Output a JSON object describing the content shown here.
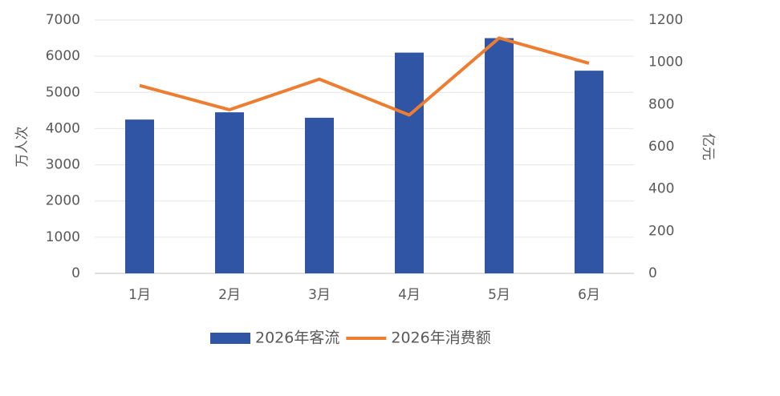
{
  "chart_data": {
    "type": "bar_line",
    "categories": [
      "1月",
      "2月",
      "3月",
      "4月",
      "5月",
      "6月"
    ],
    "series": [
      {
        "name": "2026年客流",
        "type": "bar",
        "color": "#2f55a4",
        "values": [
          4250,
          4450,
          4300,
          6100,
          6500,
          5600
        ]
      },
      {
        "name": "2026年消费额",
        "type": "line",
        "color": "#ed7d31",
        "axis": "y2",
        "values": [
          890,
          775,
          920,
          750,
          1115,
          995
        ]
      }
    ],
    "ylabel": "万人次",
    "y2label": "亿元",
    "ylim": [
      0,
      7000
    ],
    "yticks": [
      0,
      1000,
      2000,
      3000,
      4000,
      5000,
      6000,
      7000
    ],
    "y2lim": [
      0,
      1200
    ],
    "y2ticks": [
      0,
      200,
      400,
      600,
      800,
      1000,
      1200
    ],
    "grid": true,
    "legend": "bottom"
  }
}
